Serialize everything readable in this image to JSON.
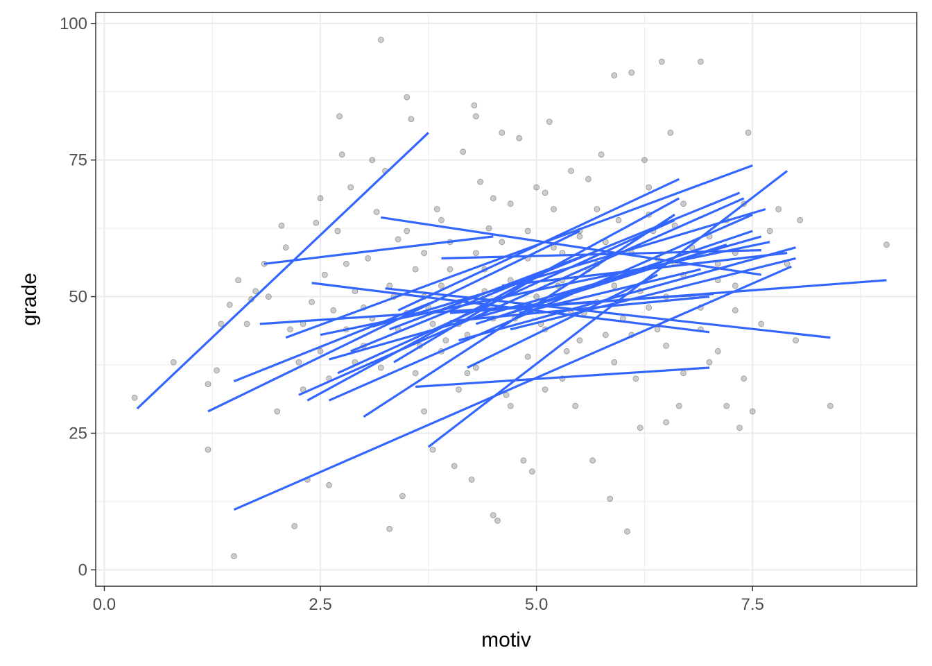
{
  "chart_data": {
    "type": "scatter",
    "xlabel": "motiv",
    "ylabel": "grade",
    "xlim": [
      -0.1,
      9.4
    ],
    "ylim": [
      -3,
      102
    ],
    "x_ticks": [
      0.0,
      2.5,
      5.0,
      7.5
    ],
    "x_tick_labels": [
      "0.0",
      "2.5",
      "5.0",
      "7.5"
    ],
    "y_ticks": [
      0,
      25,
      50,
      75,
      100
    ],
    "y_tick_labels": [
      "0",
      "25",
      "50",
      "75",
      "100"
    ],
    "grid": true,
    "colors": {
      "points": "#000000",
      "points_alpha": 0.2,
      "lines": "#3366FF",
      "grid": "#EBEBEB",
      "panel_border": "#333333"
    },
    "points": [
      [
        0.35,
        31.5
      ],
      [
        0.8,
        38
      ],
      [
        1.2,
        22
      ],
      [
        1.2,
        34
      ],
      [
        1.3,
        36.5
      ],
      [
        1.35,
        45
      ],
      [
        1.45,
        48.5
      ],
      [
        1.5,
        2.5
      ],
      [
        1.55,
        53
      ],
      [
        1.65,
        45
      ],
      [
        1.7,
        49.5
      ],
      [
        1.75,
        51
      ],
      [
        1.85,
        56
      ],
      [
        1.9,
        50
      ],
      [
        2.0,
        29
      ],
      [
        2.05,
        63
      ],
      [
        2.1,
        59
      ],
      [
        2.15,
        44
      ],
      [
        2.2,
        8
      ],
      [
        2.25,
        38
      ],
      [
        2.3,
        33
      ],
      [
        2.35,
        16.5
      ],
      [
        2.4,
        49
      ],
      [
        2.45,
        63.5
      ],
      [
        2.5,
        68
      ],
      [
        2.55,
        54
      ],
      [
        2.6,
        15.5
      ],
      [
        2.65,
        47.5
      ],
      [
        2.7,
        62
      ],
      [
        2.72,
        83
      ],
      [
        2.75,
        76
      ],
      [
        2.8,
        56
      ],
      [
        2.85,
        70
      ],
      [
        2.9,
        51
      ],
      [
        3.0,
        41
      ],
      [
        3.05,
        57
      ],
      [
        3.1,
        75
      ],
      [
        3.15,
        65.5
      ],
      [
        3.2,
        97
      ],
      [
        3.25,
        73
      ],
      [
        3.3,
        7.5
      ],
      [
        3.35,
        50
      ],
      [
        3.4,
        60.5
      ],
      [
        3.45,
        13.5
      ],
      [
        3.5,
        86.5
      ],
      [
        3.55,
        82.5
      ],
      [
        3.6,
        55
      ],
      [
        3.65,
        41
      ],
      [
        3.7,
        29
      ],
      [
        3.75,
        48
      ],
      [
        3.8,
        22
      ],
      [
        3.85,
        66
      ],
      [
        3.9,
        52
      ],
      [
        3.95,
        42
      ],
      [
        4.0,
        60
      ],
      [
        4.05,
        19
      ],
      [
        4.1,
        45
      ],
      [
        4.15,
        76.5
      ],
      [
        4.2,
        36
      ],
      [
        4.25,
        16.5
      ],
      [
        4.28,
        85
      ],
      [
        4.3,
        83
      ],
      [
        4.35,
        71
      ],
      [
        4.4,
        55
      ],
      [
        4.45,
        62.5
      ],
      [
        4.5,
        10
      ],
      [
        4.55,
        9
      ],
      [
        4.6,
        80
      ],
      [
        4.65,
        32
      ],
      [
        4.7,
        67
      ],
      [
        4.75,
        46
      ],
      [
        4.8,
        79
      ],
      [
        4.85,
        20
      ],
      [
        4.9,
        62
      ],
      [
        4.95,
        18
      ],
      [
        5.0,
        70
      ],
      [
        5.05,
        45
      ],
      [
        5.1,
        33
      ],
      [
        5.15,
        82
      ],
      [
        5.2,
        66
      ],
      [
        5.25,
        52
      ],
      [
        5.3,
        58
      ],
      [
        5.35,
        40
      ],
      [
        5.4,
        73
      ],
      [
        5.45,
        30
      ],
      [
        5.5,
        61
      ],
      [
        5.55,
        47
      ],
      [
        5.6,
        71.5
      ],
      [
        5.65,
        20
      ],
      [
        5.7,
        56
      ],
      [
        5.75,
        76
      ],
      [
        5.8,
        43
      ],
      [
        5.85,
        13
      ],
      [
        5.9,
        90.5
      ],
      [
        5.95,
        64
      ],
      [
        6.0,
        54
      ],
      [
        6.05,
        7
      ],
      [
        6.1,
        91
      ],
      [
        6.15,
        35
      ],
      [
        6.2,
        26
      ],
      [
        6.25,
        75
      ],
      [
        6.3,
        48
      ],
      [
        6.35,
        62
      ],
      [
        6.4,
        44
      ],
      [
        6.45,
        93
      ],
      [
        6.5,
        27
      ],
      [
        6.55,
        80
      ],
      [
        6.6,
        56
      ],
      [
        6.65,
        30
      ],
      [
        6.7,
        67
      ],
      [
        6.8,
        50
      ],
      [
        6.9,
        93
      ],
      [
        7.0,
        38
      ],
      [
        7.1,
        53
      ],
      [
        7.2,
        30
      ],
      [
        7.3,
        47.5
      ],
      [
        7.35,
        26
      ],
      [
        7.4,
        35
      ],
      [
        7.45,
        80
      ],
      [
        7.5,
        29
      ],
      [
        7.6,
        45
      ],
      [
        7.7,
        62
      ],
      [
        7.8,
        66
      ],
      [
        7.9,
        56
      ],
      [
        8.0,
        42
      ],
      [
        8.05,
        64
      ],
      [
        8.4,
        30
      ],
      [
        9.05,
        59.5
      ],
      [
        2.3,
        45
      ],
      [
        2.5,
        40
      ],
      [
        2.6,
        35
      ],
      [
        2.8,
        44
      ],
      [
        2.9,
        38
      ],
      [
        3.0,
        48
      ],
      [
        3.1,
        46
      ],
      [
        3.2,
        37
      ],
      [
        3.3,
        52
      ],
      [
        3.4,
        44
      ],
      [
        3.5,
        47
      ],
      [
        3.6,
        36
      ],
      [
        3.7,
        50
      ],
      [
        3.8,
        45
      ],
      [
        3.9,
        40
      ],
      [
        4.0,
        55
      ],
      [
        4.1,
        49
      ],
      [
        4.2,
        43
      ],
      [
        4.3,
        58
      ],
      [
        4.4,
        51
      ],
      [
        4.5,
        46
      ],
      [
        4.6,
        60
      ],
      [
        4.7,
        53
      ],
      [
        4.8,
        48
      ],
      [
        4.9,
        57
      ],
      [
        5.0,
        50
      ],
      [
        5.1,
        44
      ],
      [
        5.2,
        59
      ],
      [
        5.3,
        53
      ],
      [
        5.4,
        47
      ],
      [
        5.5,
        62
      ],
      [
        5.6,
        55
      ],
      [
        5.7,
        49
      ],
      [
        5.8,
        60
      ],
      [
        5.9,
        52
      ],
      [
        6.0,
        46
      ],
      [
        6.1,
        58
      ],
      [
        6.2,
        51
      ],
      [
        6.3,
        65
      ],
      [
        6.4,
        57
      ],
      [
        6.5,
        50
      ],
      [
        6.6,
        63
      ],
      [
        6.7,
        54
      ],
      [
        6.8,
        59
      ],
      [
        6.9,
        48
      ],
      [
        7.0,
        61
      ],
      [
        7.1,
        56
      ],
      [
        7.2,
        64
      ],
      [
        7.3,
        52
      ],
      [
        7.4,
        67
      ],
      [
        3.5,
        62
      ],
      [
        3.7,
        58
      ],
      [
        3.9,
        64
      ],
      [
        4.1,
        33
      ],
      [
        4.3,
        37
      ],
      [
        4.5,
        68
      ],
      [
        4.7,
        30
      ],
      [
        4.9,
        39
      ],
      [
        5.1,
        69
      ],
      [
        5.3,
        35
      ],
      [
        5.5,
        42
      ],
      [
        5.7,
        66
      ],
      [
        5.9,
        38
      ],
      [
        6.1,
        43
      ],
      [
        6.3,
        70
      ],
      [
        6.5,
        41
      ],
      [
        6.7,
        36
      ],
      [
        6.9,
        44
      ],
      [
        7.1,
        40
      ],
      [
        7.3,
        58
      ]
    ],
    "series": [
      {
        "x": [
          0.38,
          3.75
        ],
        "y": [
          29.5,
          80
        ]
      },
      {
        "x": [
          1.2,
          5.5
        ],
        "y": [
          29,
          62
        ]
      },
      {
        "x": [
          1.5,
          7.95
        ],
        "y": [
          11,
          55.5
        ]
      },
      {
        "x": [
          1.5,
          3.8
        ],
        "y": [
          34.5,
          49
        ]
      },
      {
        "x": [
          1.85,
          4.5
        ],
        "y": [
          56,
          61
        ]
      },
      {
        "x": [
          1.8,
          7.05
        ],
        "y": [
          45,
          50.5
        ]
      },
      {
        "x": [
          2.1,
          7.5
        ],
        "y": [
          42.5,
          74
        ]
      },
      {
        "x": [
          2.25,
          7.4
        ],
        "y": [
          32,
          68
        ]
      },
      {
        "x": [
          2.35,
          6.65
        ],
        "y": [
          31,
          68
        ]
      },
      {
        "x": [
          2.4,
          7.0
        ],
        "y": [
          52.5,
          43.5
        ]
      },
      {
        "x": [
          2.5,
          7.7
        ],
        "y": [
          43,
          60
        ]
      },
      {
        "x": [
          2.6,
          7.5
        ],
        "y": [
          31,
          65
        ]
      },
      {
        "x": [
          2.6,
          7.6
        ],
        "y": [
          38.5,
          61
        ]
      },
      {
        "x": [
          2.7,
          6.6
        ],
        "y": [
          36,
          64
        ]
      },
      {
        "x": [
          2.85,
          7.35
        ],
        "y": [
          40,
          69
        ]
      },
      {
        "x": [
          3.0,
          6.6
        ],
        "y": [
          28,
          65
        ]
      },
      {
        "x": [
          3.1,
          7.65
        ],
        "y": [
          44.5,
          66
        ]
      },
      {
        "x": [
          3.2,
          7.6
        ],
        "y": [
          64.5,
          54
        ]
      },
      {
        "x": [
          3.25,
          8.4
        ],
        "y": [
          51.5,
          42.5
        ]
      },
      {
        "x": [
          3.3,
          5.55
        ],
        "y": [
          44,
          57.5
        ]
      },
      {
        "x": [
          3.35,
          5.1
        ],
        "y": [
          38,
          54.5
        ]
      },
      {
        "x": [
          3.4,
          6.65
        ],
        "y": [
          47.5,
          71.5
        ]
      },
      {
        "x": [
          3.6,
          7.0
        ],
        "y": [
          33.5,
          37
        ]
      },
      {
        "x": [
          3.75,
          7.9
        ],
        "y": [
          22.5,
          73
        ]
      },
      {
        "x": [
          3.9,
          7.6
        ],
        "y": [
          57,
          58.5
        ]
      },
      {
        "x": [
          4.0,
          7.0
        ],
        "y": [
          45.5,
          50
        ]
      },
      {
        "x": [
          4.0,
          9.05
        ],
        "y": [
          47,
          53
        ]
      },
      {
        "x": [
          4.1,
          8.0
        ],
        "y": [
          42,
          59
        ]
      },
      {
        "x": [
          4.2,
          6.4
        ],
        "y": [
          37,
          54
        ]
      },
      {
        "x": [
          4.3,
          7.2
        ],
        "y": [
          45,
          59.5
        ]
      },
      {
        "x": [
          4.5,
          7.5
        ],
        "y": [
          46,
          62
        ]
      },
      {
        "x": [
          4.6,
          7.9
        ],
        "y": [
          52,
          58
        ]
      },
      {
        "x": [
          4.7,
          8.0
        ],
        "y": [
          44,
          57
        ]
      },
      {
        "x": [
          4.8,
          6.9
        ],
        "y": [
          47,
          55
        ]
      }
    ]
  }
}
